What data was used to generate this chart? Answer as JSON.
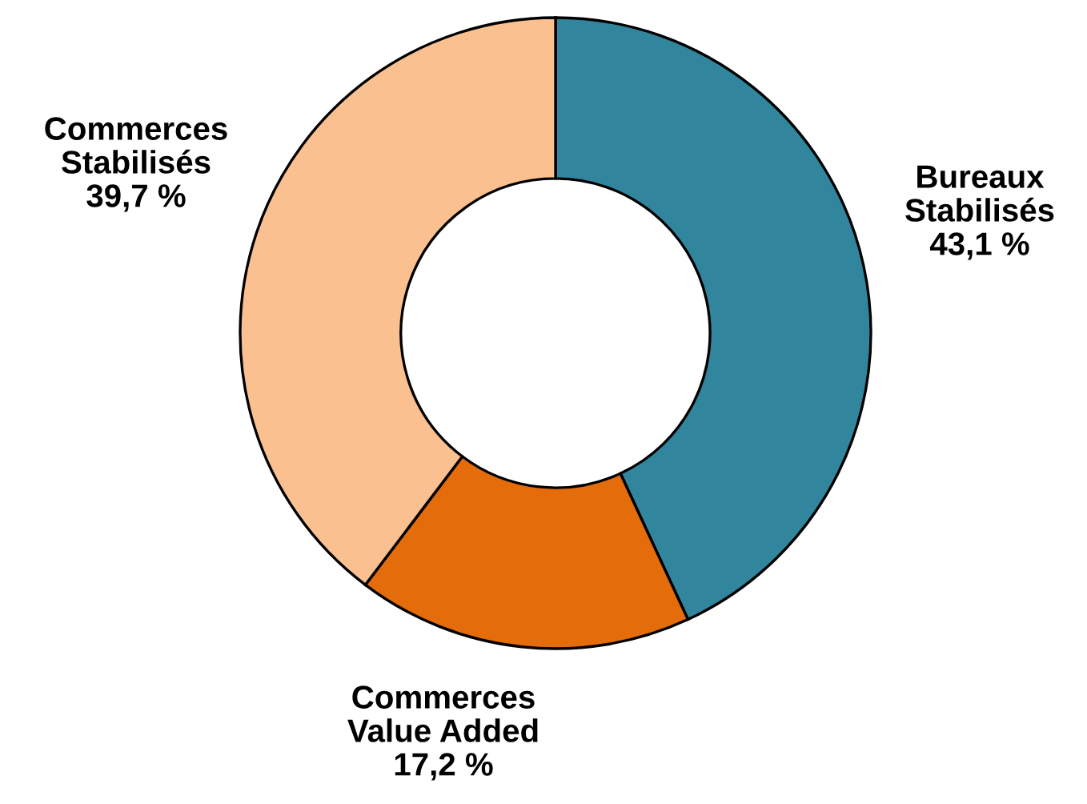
{
  "chart_data": {
    "type": "donut",
    "categories": [
      "Bureaux\nStabilisés",
      "Commerces\nValue Added",
      "Commerces\nStabilisés"
    ],
    "values": [
      43.1,
      17.2,
      39.7
    ],
    "value_labels": [
      "43,1 %",
      "17,2 %",
      "39,7 %"
    ],
    "colors": [
      "#31859c",
      "#e46c0a",
      "#fac090"
    ],
    "legend": false
  }
}
